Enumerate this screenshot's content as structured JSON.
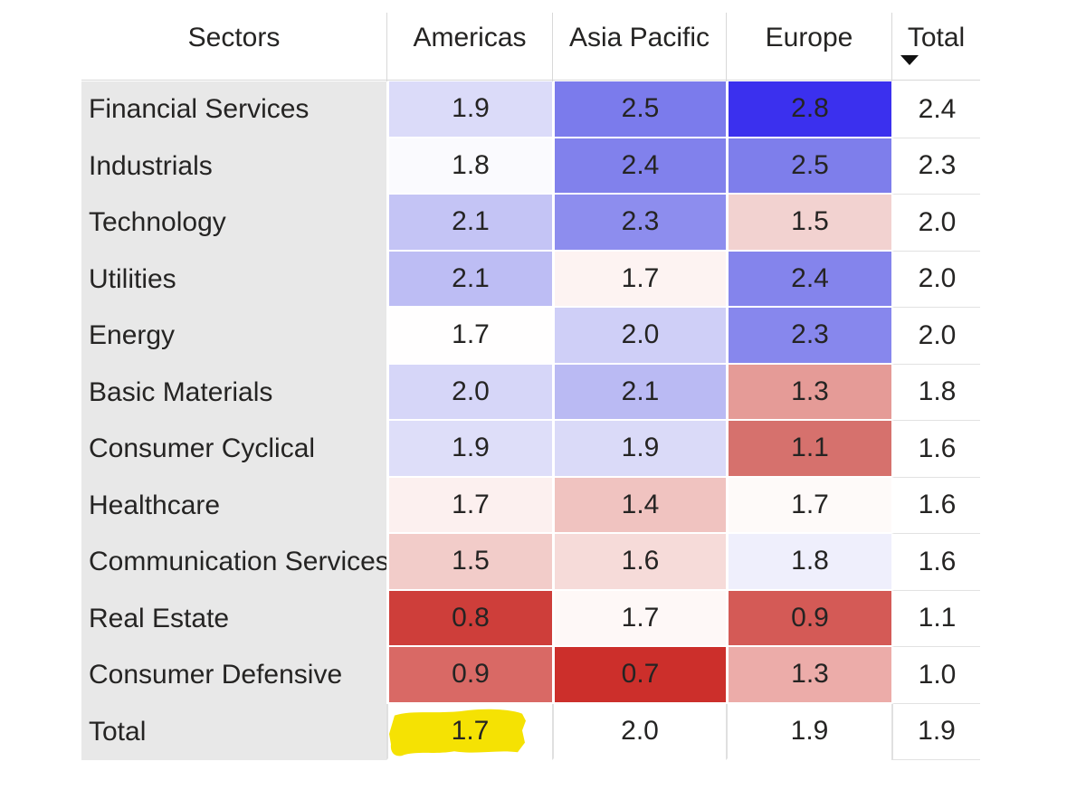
{
  "chart_data": {
    "type": "heatmap",
    "title": "",
    "row_label_header": "Sectors",
    "columns": [
      "Americas",
      "Asia Pacific",
      "Europe",
      "Total"
    ],
    "rows": [
      "Financial Services",
      "Industrials",
      "Technology",
      "Utilities",
      "Energy",
      "Basic Materials",
      "Consumer Cyclical",
      "Healthcare",
      "Communication Services",
      "Real Estate",
      "Consumer Defensive",
      "Total"
    ],
    "values": [
      [
        1.9,
        2.5,
        2.8,
        2.4
      ],
      [
        1.8,
        2.4,
        2.5,
        2.3
      ],
      [
        2.1,
        2.3,
        1.5,
        2.0
      ],
      [
        2.1,
        1.7,
        2.4,
        2.0
      ],
      [
        1.7,
        2.0,
        2.3,
        2.0
      ],
      [
        2.0,
        2.1,
        1.3,
        1.8
      ],
      [
        1.9,
        1.9,
        1.1,
        1.6
      ],
      [
        1.7,
        1.4,
        1.7,
        1.6
      ],
      [
        1.5,
        1.6,
        1.8,
        1.6
      ],
      [
        0.8,
        1.7,
        0.9,
        1.1
      ],
      [
        0.9,
        0.7,
        1.3,
        1.0
      ],
      [
        1.7,
        2.0,
        1.9,
        1.9
      ]
    ],
    "color_scale": {
      "low": "#CC2F2B",
      "mid": "#FFFFFF",
      "high": "#3B30EE",
      "domain": [
        0.7,
        1.75,
        2.8
      ]
    },
    "sort": "Total descending",
    "annotation": "Yellow highlighter mark over Total-row Americas value 1.7",
    "legend": "none",
    "grid": "light gray row/column separators; Total cells uncolored"
  },
  "matrix": {
    "columns": [
      {
        "label": "Sectors"
      },
      {
        "label": "Americas"
      },
      {
        "label": "Asia Pacific"
      },
      {
        "label": "Europe"
      },
      {
        "label": "Total",
        "sort": "descending",
        "sort_icon": "triangle-down"
      }
    ],
    "rows": [
      {
        "sector": "Financial Services",
        "values": [
          "1.9",
          "2.5",
          "2.8"
        ],
        "fills": [
          "#DBDBF9",
          "#7B7BEC",
          "#3B30EE"
        ],
        "total": "2.4"
      },
      {
        "sector": "Industrials",
        "values": [
          "1.8",
          "2.4",
          "2.5"
        ],
        "fills": [
          "#FAFAFE",
          "#8181EC",
          "#7E7EEB"
        ],
        "total": "2.3"
      },
      {
        "sector": "Technology",
        "values": [
          "2.1",
          "2.3",
          "1.5"
        ],
        "fills": [
          "#C4C4F5",
          "#8D8DEE",
          "#F2D2D0"
        ],
        "total": "2.0"
      },
      {
        "sector": "Utilities",
        "values": [
          "2.1",
          "1.7",
          "2.4"
        ],
        "fills": [
          "#BDBDF4",
          "#FDF3F2",
          "#8484EC"
        ],
        "total": "2.0"
      },
      {
        "sector": "Energy",
        "values": [
          "1.7",
          "2.0",
          "2.3"
        ],
        "fills": [
          "#FFFEFE",
          "#CFCFF7",
          "#8787ED"
        ],
        "total": "2.0"
      },
      {
        "sector": "Basic Materials",
        "values": [
          "2.0",
          "2.1",
          "1.3"
        ],
        "fills": [
          "#D6D6F8",
          "#BABAF3",
          "#E59B97"
        ],
        "total": "1.8"
      },
      {
        "sector": "Consumer Cyclical",
        "values": [
          "1.9",
          "1.9",
          "1.1"
        ],
        "fills": [
          "#DEDEF9",
          "#DADAF8",
          "#D6716D"
        ],
        "total": "1.6"
      },
      {
        "sector": "Healthcare",
        "values": [
          "1.7",
          "1.4",
          "1.7"
        ],
        "fills": [
          "#FCF0EF",
          "#F0C3C0",
          "#FEFAF9"
        ],
        "total": "1.6"
      },
      {
        "sector": "Communication Services",
        "values": [
          "1.5",
          "1.6",
          "1.8"
        ],
        "fills": [
          "#F2CCC9",
          "#F6DBD9",
          "#EFEFFC"
        ],
        "total": "1.6"
      },
      {
        "sector": "Real Estate",
        "values": [
          "0.8",
          "1.7",
          "0.9"
        ],
        "fills": [
          "#CE3E3A",
          "#FEF8F7",
          "#D45A56"
        ],
        "total": "1.1"
      },
      {
        "sector": "Consumer Defensive",
        "values": [
          "0.9",
          "0.7",
          "1.3"
        ],
        "fills": [
          "#D96965",
          "#CC2F2B",
          "#ECACA9"
        ],
        "total": "1.0"
      },
      {
        "sector": "Total",
        "values": [
          "1.7",
          "2.0",
          "1.9"
        ],
        "fills": [
          "#FFFFFF",
          "#FFFFFF",
          "#FFFFFF"
        ],
        "total": "1.9",
        "is_grand_total": true,
        "highlighted_value_index": 0
      }
    ],
    "colors": {
      "row_header_bg": "#E8E8E8",
      "header_divider": "#D8D8D8",
      "total_divider": "#E2E2E2",
      "text": "#252423",
      "sort_arrow": "#111111",
      "highlight_marker": "#F5E203",
      "background": "#FFFFFF"
    }
  }
}
